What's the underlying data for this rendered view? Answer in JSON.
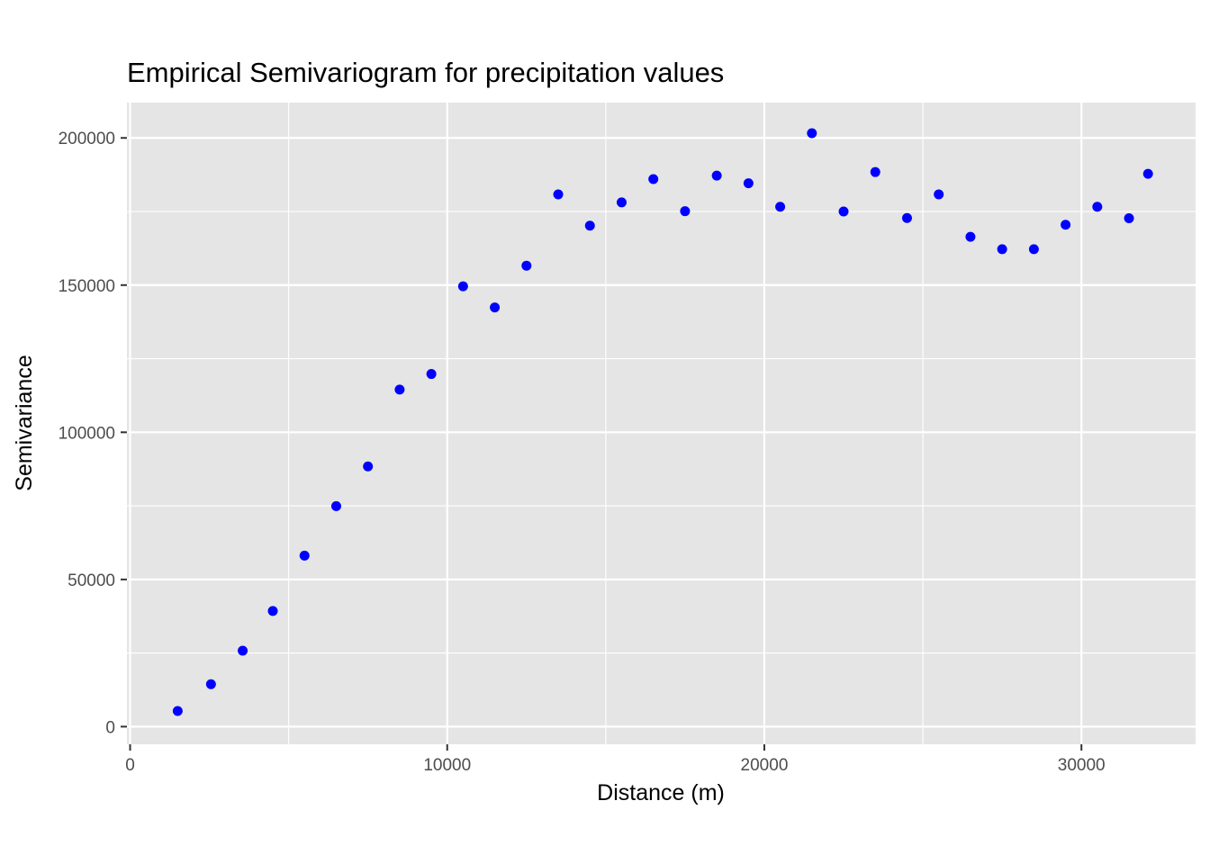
{
  "chart_data": {
    "type": "scatter",
    "title": "Empirical Semivariogram for precipitation values",
    "xlabel": "Distance (m)",
    "ylabel": "Semivariance",
    "xlim": [
      -100,
      33600
    ],
    "ylim": [
      -6000,
      212000
    ],
    "x_ticks": [
      0,
      10000,
      20000,
      30000
    ],
    "y_ticks": [
      0,
      50000,
      100000,
      150000,
      200000
    ],
    "x_tick_labels": [
      "0",
      "10000",
      "20000",
      "30000"
    ],
    "y_tick_labels": [
      "0",
      "50000",
      "100000",
      "150000",
      "200000"
    ],
    "grid": true,
    "panel_background": "#e5e5e5",
    "grid_color": "#ffffff",
    "point_color": "#0000ff",
    "points": [
      {
        "x": 1500,
        "y": 5300
      },
      {
        "x": 2550,
        "y": 14400
      },
      {
        "x": 3550,
        "y": 25800
      },
      {
        "x": 4500,
        "y": 39300
      },
      {
        "x": 5500,
        "y": 58100
      },
      {
        "x": 6500,
        "y": 74900
      },
      {
        "x": 7500,
        "y": 88400
      },
      {
        "x": 8500,
        "y": 114500
      },
      {
        "x": 9500,
        "y": 119800
      },
      {
        "x": 10500,
        "y": 149600
      },
      {
        "x": 11500,
        "y": 142400
      },
      {
        "x": 12500,
        "y": 156600
      },
      {
        "x": 13500,
        "y": 180800
      },
      {
        "x": 14500,
        "y": 170200
      },
      {
        "x": 15500,
        "y": 178100
      },
      {
        "x": 16500,
        "y": 186000
      },
      {
        "x": 17500,
        "y": 175100
      },
      {
        "x": 18500,
        "y": 187200
      },
      {
        "x": 19500,
        "y": 184600
      },
      {
        "x": 20500,
        "y": 176600
      },
      {
        "x": 21500,
        "y": 201600
      },
      {
        "x": 22500,
        "y": 175000
      },
      {
        "x": 23500,
        "y": 188400
      },
      {
        "x": 24500,
        "y": 172800
      },
      {
        "x": 25500,
        "y": 180800
      },
      {
        "x": 26500,
        "y": 166400
      },
      {
        "x": 27500,
        "y": 162200
      },
      {
        "x": 28500,
        "y": 162200
      },
      {
        "x": 29500,
        "y": 170500
      },
      {
        "x": 30500,
        "y": 176600
      },
      {
        "x": 31500,
        "y": 172700
      },
      {
        "x": 32100,
        "y": 187800
      }
    ]
  }
}
